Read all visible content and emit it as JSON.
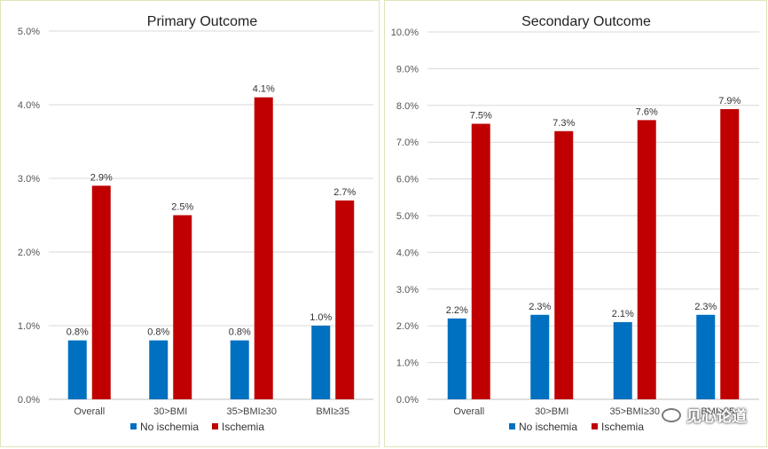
{
  "chart_data": [
    {
      "type": "bar",
      "title": "Primary Outcome",
      "categories": [
        "Overall",
        "30>BMI",
        "35>BMI≥30",
        "BMI≥35"
      ],
      "series": [
        {
          "name": "No ischemia",
          "values": [
            0.8,
            0.8,
            0.8,
            1.0
          ],
          "labels": [
            "0.8%",
            "0.8%",
            "0.8%",
            "1.0%"
          ],
          "color": "#0070c0"
        },
        {
          "name": "Ischemia",
          "values": [
            2.9,
            2.5,
            4.1,
            2.7
          ],
          "labels": [
            "2.9%",
            "2.5%",
            "4.1%",
            "2.7%"
          ],
          "color": "#c00000"
        }
      ],
      "ylim": [
        0,
        5
      ],
      "yticks": [
        "0.0%",
        "1.0%",
        "2.0%",
        "3.0%",
        "4.0%",
        "5.0%"
      ],
      "xlabel": "",
      "ylabel": "",
      "grid": true,
      "legend": "bottom"
    },
    {
      "type": "bar",
      "title": "Secondary Outcome",
      "categories": [
        "Overall",
        "30>BMI",
        "35>BMI≥30",
        "BMI≥35"
      ],
      "series": [
        {
          "name": "No ischemia",
          "values": [
            2.2,
            2.3,
            2.1,
            2.3
          ],
          "labels": [
            "2.2%",
            "2.3%",
            "2.1%",
            "2.3%"
          ],
          "color": "#0070c0"
        },
        {
          "name": "Ischemia",
          "values": [
            7.5,
            7.3,
            7.6,
            7.9
          ],
          "labels": [
            "7.5%",
            "7.3%",
            "7.6%",
            "7.9%"
          ],
          "color": "#c00000"
        }
      ],
      "ylim": [
        0,
        10
      ],
      "yticks": [
        "0.0%",
        "1.0%",
        "2.0%",
        "3.0%",
        "4.0%",
        "5.0%",
        "6.0%",
        "7.0%",
        "8.0%",
        "9.0%",
        "10.0%"
      ],
      "xlabel": "",
      "ylabel": "",
      "grid": true,
      "legend": "bottom"
    }
  ],
  "watermark": {
    "text": "见心论道",
    "icon": "wechat-icon"
  }
}
